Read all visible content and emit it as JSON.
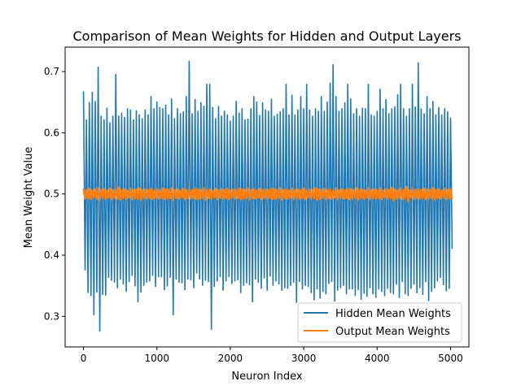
{
  "chart_data": {
    "type": "line",
    "title": "Comparison of Mean Weights for Hidden and Output Layers",
    "xlabel": "Neuron Index",
    "ylabel": "Mean Weight Value",
    "xlim": [
      -250,
      5250
    ],
    "ylim": [
      0.25,
      0.74
    ],
    "xticks": [
      0,
      1000,
      2000,
      3000,
      4000,
      5000
    ],
    "yticks": [
      0.3,
      0.4,
      0.5,
      0.6,
      0.7
    ],
    "xtick_labels": [
      "0",
      "1000",
      "2000",
      "3000",
      "4000",
      "5000"
    ],
    "ytick_labels": [
      "0.3",
      "0.4",
      "0.5",
      "0.6",
      "0.7"
    ],
    "grid": false,
    "legend_position": "lower-right",
    "x": [
      0,
      40,
      80,
      120,
      160,
      200,
      240,
      280,
      320,
      360,
      400,
      440,
      480,
      520,
      560,
      600,
      640,
      680,
      720,
      760,
      800,
      840,
      880,
      920,
      960,
      1000,
      1040,
      1080,
      1120,
      1160,
      1200,
      1240,
      1280,
      1320,
      1360,
      1400,
      1440,
      1480,
      1520,
      1560,
      1600,
      1640,
      1680,
      1720,
      1760,
      1800,
      1840,
      1880,
      1920,
      1960,
      2000,
      2040,
      2080,
      2120,
      2160,
      2200,
      2240,
      2280,
      2320,
      2360,
      2400,
      2440,
      2480,
      2520,
      2560,
      2600,
      2640,
      2680,
      2720,
      2760,
      2800,
      2840,
      2880,
      2920,
      2960,
      3000,
      3040,
      3080,
      3120,
      3160,
      3200,
      3240,
      3280,
      3320,
      3360,
      3400,
      3440,
      3480,
      3520,
      3560,
      3600,
      3640,
      3680,
      3720,
      3760,
      3800,
      3840,
      3880,
      3920,
      3960,
      4000,
      4040,
      4080,
      4120,
      4160,
      4200,
      4240,
      4280,
      4320,
      4360,
      4400,
      4440,
      4480,
      4520,
      4560,
      4600,
      4640,
      4680,
      4720,
      4760,
      4800,
      4840,
      4880,
      4920,
      4960,
      5000
    ],
    "series": [
      {
        "name": "Hidden Mean Weights",
        "color": "#1f77b4",
        "high": [
          0.668,
          0.622,
          0.65,
          0.667,
          0.652,
          0.708,
          0.628,
          0.622,
          0.641,
          0.617,
          0.628,
          0.696,
          0.628,
          0.633,
          0.626,
          0.64,
          0.638,
          0.622,
          0.637,
          0.63,
          0.624,
          0.638,
          0.63,
          0.66,
          0.64,
          0.651,
          0.642,
          0.64,
          0.646,
          0.63,
          0.656,
          0.624,
          0.64,
          0.632,
          0.635,
          0.66,
          0.718,
          0.632,
          0.655,
          0.636,
          0.65,
          0.644,
          0.68,
          0.68,
          0.642,
          0.624,
          0.644,
          0.628,
          0.636,
          0.63,
          0.62,
          0.628,
          0.652,
          0.633,
          0.64,
          0.622,
          0.623,
          0.64,
          0.66,
          0.651,
          0.629,
          0.65,
          0.638,
          0.636,
          0.656,
          0.628,
          0.631,
          0.635,
          0.64,
          0.68,
          0.63,
          0.662,
          0.63,
          0.638,
          0.66,
          0.64,
          0.68,
          0.638,
          0.628,
          0.64,
          0.636,
          0.66,
          0.636,
          0.651,
          0.682,
          0.712,
          0.66,
          0.636,
          0.64,
          0.65,
          0.68,
          0.656,
          0.632,
          0.64,
          0.628,
          0.641,
          0.64,
          0.68,
          0.63,
          0.628,
          0.636,
          0.672,
          0.64,
          0.655,
          0.632,
          0.64,
          0.643,
          0.663,
          0.68,
          0.64,
          0.628,
          0.64,
          0.68,
          0.643,
          0.715,
          0.64,
          0.632,
          0.66,
          0.64,
          0.652,
          0.63,
          0.642,
          0.63,
          0.64,
          0.635,
          0.625
        ],
        "low": [
          0.375,
          0.338,
          0.333,
          0.302,
          0.339,
          0.275,
          0.335,
          0.334,
          0.363,
          0.358,
          0.355,
          0.346,
          0.36,
          0.352,
          0.34,
          0.356,
          0.366,
          0.349,
          0.323,
          0.339,
          0.35,
          0.355,
          0.357,
          0.366,
          0.348,
          0.364,
          0.364,
          0.343,
          0.349,
          0.363,
          0.302,
          0.36,
          0.355,
          0.354,
          0.343,
          0.36,
          0.359,
          0.346,
          0.37,
          0.36,
          0.35,
          0.358,
          0.356,
          0.278,
          0.348,
          0.357,
          0.364,
          0.342,
          0.357,
          0.364,
          0.353,
          0.357,
          0.359,
          0.338,
          0.35,
          0.354,
          0.351,
          0.323,
          0.36,
          0.355,
          0.345,
          0.362,
          0.342,
          0.365,
          0.35,
          0.357,
          0.352,
          0.342,
          0.346,
          0.345,
          0.35,
          0.355,
          0.322,
          0.356,
          0.344,
          0.35,
          0.348,
          0.338,
          0.326,
          0.344,
          0.329,
          0.34,
          0.336,
          0.353,
          0.356,
          0.324,
          0.342,
          0.346,
          0.35,
          0.336,
          0.344,
          0.344,
          0.333,
          0.343,
          0.327,
          0.337,
          0.332,
          0.346,
          0.336,
          0.33,
          0.344,
          0.34,
          0.333,
          0.345,
          0.338,
          0.336,
          0.352,
          0.33,
          0.356,
          0.336,
          0.333,
          0.345,
          0.352,
          0.338,
          0.346,
          0.335,
          0.356,
          0.325,
          0.34,
          0.346,
          0.357,
          0.363,
          0.351,
          0.341,
          0.345,
          0.41
        ]
      },
      {
        "name": "Output Mean Weights",
        "color": "#ff7f0e",
        "high": [
          0.509,
          0.508,
          0.51,
          0.507,
          0.509,
          0.511,
          0.508,
          0.509,
          0.507,
          0.51,
          0.508,
          0.509,
          0.512,
          0.508,
          0.509,
          0.507,
          0.51,
          0.508,
          0.509,
          0.511,
          0.508,
          0.509,
          0.508,
          0.51,
          0.507,
          0.509,
          0.508,
          0.51,
          0.509,
          0.508,
          0.511,
          0.508,
          0.509,
          0.507,
          0.51,
          0.508,
          0.509,
          0.508,
          0.51,
          0.509,
          0.508,
          0.511,
          0.508,
          0.509,
          0.507,
          0.51,
          0.508,
          0.509,
          0.508,
          0.51,
          0.507,
          0.509,
          0.508,
          0.51,
          0.509,
          0.508,
          0.511,
          0.508,
          0.509,
          0.507,
          0.51,
          0.508,
          0.509,
          0.508,
          0.51,
          0.509,
          0.508,
          0.511,
          0.508,
          0.509,
          0.507,
          0.51,
          0.508,
          0.509,
          0.508,
          0.51,
          0.507,
          0.509,
          0.508,
          0.511,
          0.509,
          0.508,
          0.51,
          0.508,
          0.509,
          0.507,
          0.51,
          0.508,
          0.509,
          0.508,
          0.51,
          0.509,
          0.508,
          0.511,
          0.508,
          0.509,
          0.507,
          0.51,
          0.508,
          0.509,
          0.508,
          0.51,
          0.507,
          0.509,
          0.508,
          0.512,
          0.509,
          0.508,
          0.51,
          0.508,
          0.513,
          0.507,
          0.51,
          0.508,
          0.509,
          0.508,
          0.51,
          0.509,
          0.508,
          0.511,
          0.508,
          0.509,
          0.507,
          0.51,
          0.508,
          0.509
        ],
        "low": [
          0.491,
          0.492,
          0.49,
          0.493,
          0.491,
          0.489,
          0.492,
          0.491,
          0.493,
          0.49,
          0.492,
          0.491,
          0.489,
          0.492,
          0.491,
          0.493,
          0.49,
          0.492,
          0.491,
          0.489,
          0.492,
          0.491,
          0.492,
          0.49,
          0.493,
          0.491,
          0.492,
          0.49,
          0.491,
          0.492,
          0.489,
          0.492,
          0.491,
          0.493,
          0.49,
          0.492,
          0.491,
          0.492,
          0.49,
          0.491,
          0.492,
          0.489,
          0.492,
          0.491,
          0.493,
          0.49,
          0.492,
          0.491,
          0.492,
          0.49,
          0.493,
          0.491,
          0.492,
          0.49,
          0.491,
          0.492,
          0.489,
          0.492,
          0.491,
          0.493,
          0.49,
          0.492,
          0.491,
          0.492,
          0.49,
          0.491,
          0.492,
          0.489,
          0.492,
          0.491,
          0.493,
          0.49,
          0.492,
          0.491,
          0.492,
          0.49,
          0.493,
          0.491,
          0.492,
          0.489,
          0.491,
          0.492,
          0.49,
          0.492,
          0.491,
          0.493,
          0.49,
          0.492,
          0.491,
          0.492,
          0.49,
          0.491,
          0.492,
          0.489,
          0.492,
          0.491,
          0.493,
          0.49,
          0.492,
          0.491,
          0.492,
          0.49,
          0.493,
          0.491,
          0.492,
          0.488,
          0.491,
          0.492,
          0.49,
          0.492,
          0.487,
          0.493,
          0.49,
          0.492,
          0.491,
          0.492,
          0.49,
          0.491,
          0.492,
          0.489,
          0.492,
          0.491,
          0.493,
          0.49,
          0.492,
          0.491
        ]
      }
    ]
  }
}
